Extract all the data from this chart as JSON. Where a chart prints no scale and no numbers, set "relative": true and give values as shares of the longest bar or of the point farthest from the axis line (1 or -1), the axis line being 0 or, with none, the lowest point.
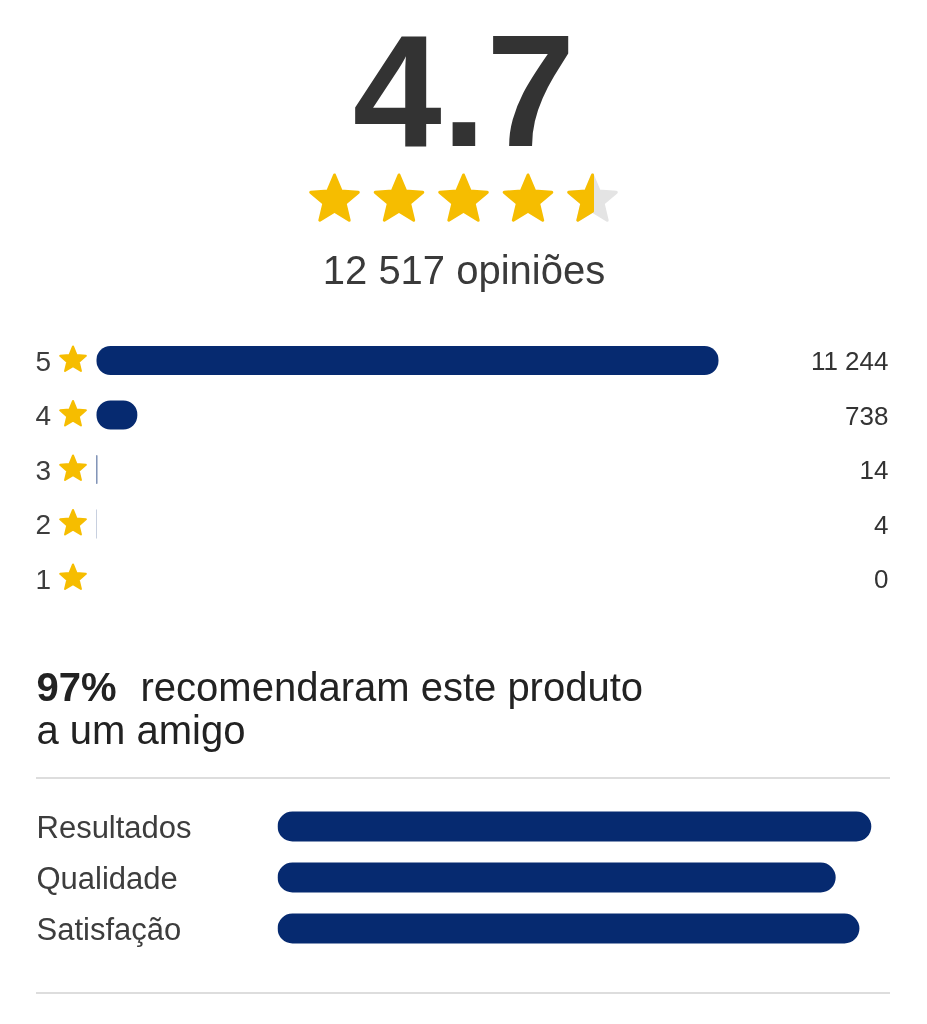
{
  "chart_data": [
    {
      "type": "bar",
      "orientation": "horizontal",
      "title": "4.7",
      "subtitle": "12 517 opiniões",
      "categories": [
        "5",
        "4",
        "3",
        "2",
        "1"
      ],
      "values": [
        11244,
        738,
        14,
        4,
        0
      ],
      "value_labels": [
        "11 244",
        "738",
        "14",
        "4",
        "0"
      ],
      "color": "#062a70",
      "tick_labels": "y",
      "annotations": [
        "97% recomendaram este produto a um amigo"
      ]
    },
    {
      "type": "bar",
      "orientation": "horizontal",
      "relative": true,
      "categories": [
        "Resultados",
        "Qualidade",
        "Satisfação"
      ],
      "values": [
        1,
        0.94,
        0.98
      ],
      "color": "#062a70"
    }
  ]
}
